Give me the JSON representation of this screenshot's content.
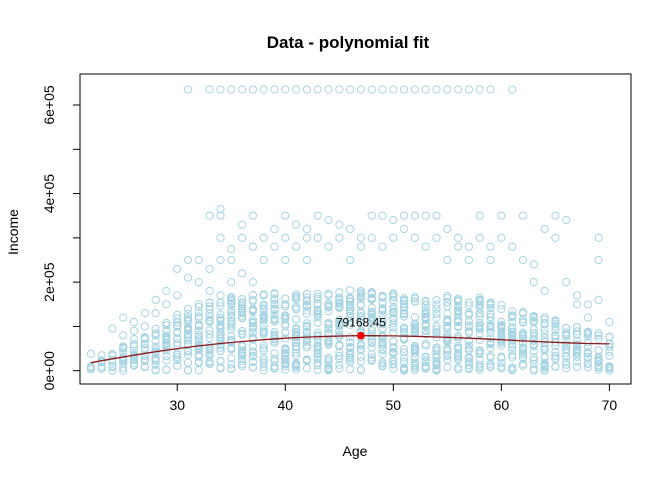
{
  "chart_data": {
    "type": "scatter",
    "title": "Data - polynomial fit",
    "xlabel": "Age",
    "ylabel": "Income",
    "xlim": [
      21,
      72
    ],
    "ylim": [
      -30000,
      670000
    ],
    "x_ticks": [
      30,
      40,
      50,
      60,
      70
    ],
    "y_ticks": [
      {
        "value": 0,
        "label": "0e+00"
      },
      {
        "value": 200000,
        "label": "2e+05"
      },
      {
        "value": 400000,
        "label": "4e+05"
      },
      {
        "value": 600000,
        "label": "6e+05"
      }
    ],
    "grid": false,
    "legend": "none",
    "colors": {
      "points": "#a6d4e3",
      "fit_line": "#8b1a1a",
      "highlight": "#ff0000"
    },
    "points": [
      [
        22,
        38000
      ],
      [
        23,
        5000
      ],
      [
        23,
        22000
      ],
      [
        23,
        35000
      ],
      [
        24,
        0
      ],
      [
        24,
        20000
      ],
      [
        24,
        35000
      ],
      [
        24,
        95000
      ],
      [
        25,
        0
      ],
      [
        25,
        30000
      ],
      [
        25,
        50000
      ],
      [
        25,
        80000
      ],
      [
        25,
        120000
      ],
      [
        26,
        45000
      ],
      [
        26,
        90000
      ],
      [
        26,
        110000
      ],
      [
        27,
        60000
      ],
      [
        27,
        100000
      ],
      [
        27,
        130000
      ],
      [
        28,
        80000
      ],
      [
        28,
        130000
      ],
      [
        28,
        160000
      ],
      [
        29,
        90000
      ],
      [
        29,
        150000
      ],
      [
        29,
        180000
      ],
      [
        30,
        100000
      ],
      [
        30,
        170000
      ],
      [
        30,
        230000
      ],
      [
        31,
        120000
      ],
      [
        31,
        250000
      ],
      [
        31,
        210000
      ],
      [
        31,
        635000
      ],
      [
        32,
        150000
      ],
      [
        32,
        200000
      ],
      [
        32,
        250000
      ],
      [
        33,
        180000
      ],
      [
        33,
        230000
      ],
      [
        33,
        350000
      ],
      [
        33,
        635000
      ],
      [
        34,
        170000
      ],
      [
        34,
        250000
      ],
      [
        34,
        300000
      ],
      [
        34,
        350000
      ],
      [
        34,
        365000
      ],
      [
        34,
        635000
      ],
      [
        35,
        200000
      ],
      [
        35,
        250000
      ],
      [
        35,
        275000
      ],
      [
        35,
        635000
      ],
      [
        36,
        220000
      ],
      [
        36,
        300000
      ],
      [
        36,
        330000
      ],
      [
        36,
        635000
      ],
      [
        37,
        200000
      ],
      [
        37,
        280000
      ],
      [
        37,
        350000
      ],
      [
        37,
        635000
      ],
      [
        38,
        250000
      ],
      [
        38,
        300000
      ],
      [
        38,
        635000
      ],
      [
        39,
        280000
      ],
      [
        39,
        320000
      ],
      [
        39,
        635000
      ],
      [
        40,
        250000
      ],
      [
        40,
        300000
      ],
      [
        40,
        350000
      ],
      [
        40,
        635000
      ],
      [
        41,
        280000
      ],
      [
        41,
        330000
      ],
      [
        41,
        635000
      ],
      [
        42,
        250000
      ],
      [
        42,
        300000
      ],
      [
        42,
        320000
      ],
      [
        42,
        635000
      ],
      [
        43,
        300000
      ],
      [
        43,
        350000
      ],
      [
        43,
        635000
      ],
      [
        44,
        280000
      ],
      [
        44,
        340000
      ],
      [
        44,
        635000
      ],
      [
        45,
        300000
      ],
      [
        45,
        330000
      ],
      [
        45,
        635000
      ],
      [
        46,
        250000
      ],
      [
        46,
        320000
      ],
      [
        46,
        635000
      ],
      [
        47,
        280000
      ],
      [
        47,
        300000
      ],
      [
        47,
        635000
      ],
      [
        48,
        300000
      ],
      [
        48,
        350000
      ],
      [
        48,
        635000
      ],
      [
        49,
        280000
      ],
      [
        49,
        350000
      ],
      [
        49,
        635000
      ],
      [
        50,
        300000
      ],
      [
        50,
        340000
      ],
      [
        50,
        635000
      ],
      [
        51,
        320000
      ],
      [
        51,
        350000
      ],
      [
        51,
        635000
      ],
      [
        52,
        300000
      ],
      [
        52,
        350000
      ],
      [
        52,
        635000
      ],
      [
        53,
        280000
      ],
      [
        53,
        350000
      ],
      [
        53,
        635000
      ],
      [
        54,
        300000
      ],
      [
        54,
        350000
      ],
      [
        54,
        635000
      ],
      [
        55,
        250000
      ],
      [
        55,
        320000
      ],
      [
        55,
        635000
      ],
      [
        56,
        280000
      ],
      [
        56,
        300000
      ],
      [
        56,
        635000
      ],
      [
        57,
        250000
      ],
      [
        57,
        280000
      ],
      [
        57,
        635000
      ],
      [
        58,
        300000
      ],
      [
        58,
        350000
      ],
      [
        58,
        635000
      ],
      [
        59,
        250000
      ],
      [
        59,
        280000
      ],
      [
        59,
        635000
      ],
      [
        60,
        300000
      ],
      [
        60,
        350000
      ],
      [
        61,
        280000
      ],
      [
        61,
        635000
      ],
      [
        62,
        250000
      ],
      [
        62,
        350000
      ],
      [
        63,
        200000
      ],
      [
        63,
        240000
      ],
      [
        64,
        180000
      ],
      [
        64,
        320000
      ],
      [
        65,
        300000
      ],
      [
        65,
        350000
      ],
      [
        66,
        200000
      ],
      [
        66,
        340000
      ],
      [
        67,
        150000
      ],
      [
        67,
        170000
      ],
      [
        68,
        120000
      ],
      [
        68,
        150000
      ],
      [
        69,
        160000
      ],
      [
        69,
        250000
      ],
      [
        69,
        300000
      ],
      [
        70,
        110000
      ],
      [
        70,
        60000
      ],
      [
        70,
        0
      ]
    ],
    "dense_band": {
      "x_range": [
        22,
        70
      ],
      "y_upper": [
        [
          22,
          10000
        ],
        [
          25,
          60000
        ],
        [
          28,
          100000
        ],
        [
          31,
          140000
        ],
        [
          34,
          165000
        ],
        [
          38,
          175000
        ],
        [
          42,
          180000
        ],
        [
          46,
          182000
        ],
        [
          50,
          180000
        ],
        [
          54,
          175000
        ],
        [
          58,
          165000
        ],
        [
          62,
          140000
        ],
        [
          66,
          110000
        ],
        [
          70,
          80000
        ]
      ],
      "y_lower": [
        [
          22,
          0
        ],
        [
          70,
          0
        ]
      ]
    },
    "fit": {
      "name": "polynomial fit",
      "x": [
        22,
        24,
        26,
        28,
        30,
        32,
        34,
        36,
        38,
        40,
        42,
        44,
        46,
        47,
        48,
        50,
        52,
        54,
        56,
        58,
        60,
        62,
        64,
        66,
        68,
        70
      ],
      "y": [
        18000,
        27000,
        35000,
        43000,
        50000,
        56000,
        61500,
        66000,
        70000,
        73500,
        76000,
        77800,
        78900,
        79168.45,
        79100,
        78600,
        77600,
        76200,
        74500,
        72400,
        70000,
        67400,
        65000,
        63000,
        61500,
        60500
      ]
    },
    "highlight": {
      "x": 47,
      "y": 79168.45,
      "label": "79168.45"
    }
  }
}
